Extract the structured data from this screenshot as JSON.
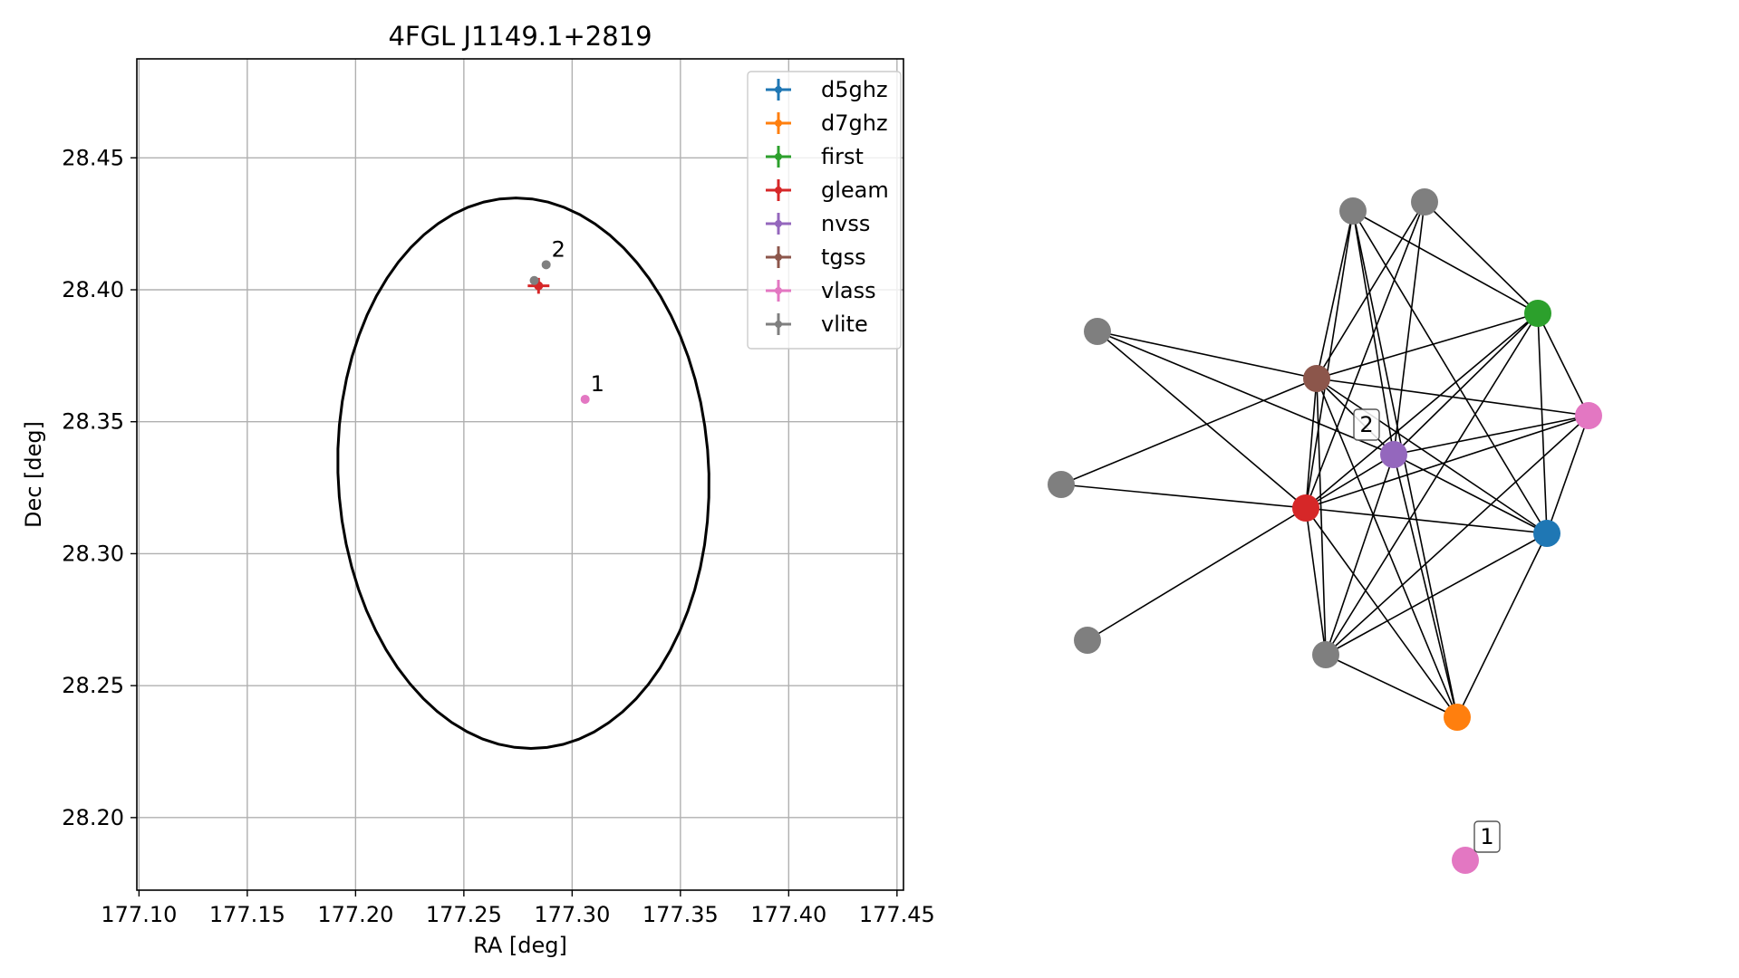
{
  "chart_data": [
    {
      "type": "scatter",
      "title": "4FGL J1149.1+2819",
      "xlabel": "RA [deg]",
      "ylabel": "Dec [deg]",
      "xlim": [
        177.099,
        177.453
      ],
      "ylim": [
        28.1725,
        28.4875
      ],
      "xticks": [
        {
          "value": 177.1,
          "label": "177.10"
        },
        {
          "value": 177.15,
          "label": "177.15"
        },
        {
          "value": 177.2,
          "label": "177.20"
        },
        {
          "value": 177.25,
          "label": "177.25"
        },
        {
          "value": 177.3,
          "label": "177.30"
        },
        {
          "value": 177.35,
          "label": "177.35"
        },
        {
          "value": 177.4,
          "label": "177.40"
        },
        {
          "value": 177.45,
          "label": "177.45"
        }
      ],
      "yticks": [
        {
          "value": 28.2,
          "label": "28.20"
        },
        {
          "value": 28.25,
          "label": "28.25"
        },
        {
          "value": 28.3,
          "label": "28.30"
        },
        {
          "value": 28.35,
          "label": "28.35"
        },
        {
          "value": 28.4,
          "label": "28.40"
        },
        {
          "value": 28.45,
          "label": "28.45"
        }
      ],
      "grid": true,
      "legend_placement": "upper right",
      "series": [
        {
          "name": "d5ghz",
          "color": "#1f77b4",
          "points": []
        },
        {
          "name": "d7ghz",
          "color": "#ff7f0e",
          "points": []
        },
        {
          "name": "first",
          "color": "#2ca02c",
          "points": []
        },
        {
          "name": "gleam",
          "color": "#d62728",
          "points": [
            {
              "ra": 177.2845,
              "dec": 28.4015,
              "ra_err": 0.005,
              "dec_err": 0.003
            }
          ]
        },
        {
          "name": "nvss",
          "color": "#9467bd",
          "points": []
        },
        {
          "name": "tgss",
          "color": "#8c564b",
          "points": []
        },
        {
          "name": "vlass",
          "color": "#e377c2",
          "points": [
            {
              "ra": 177.306,
              "dec": 28.3585,
              "ra_err": 0,
              "dec_err": 0
            }
          ]
        },
        {
          "name": "vlite",
          "color": "#7f7f7f",
          "points": [
            {
              "ra": 177.2825,
              "dec": 28.4035,
              "ra_err": 0,
              "dec_err": 0
            },
            {
              "ra": 177.288,
              "dec": 28.4095,
              "ra_err": 0,
              "dec_err": 0
            }
          ]
        }
      ],
      "ellipse": {
        "center_ra": 177.2775,
        "center_dec": 28.3305,
        "semi_ra": 0.0855,
        "semi_dec": 0.1045,
        "tilt_deg": 6,
        "color": "#000000"
      },
      "annotations": [
        {
          "text": "2",
          "ra": 177.2905,
          "dec": 28.4125
        },
        {
          "text": "1",
          "ra": 177.3085,
          "dec": 28.3615
        }
      ]
    },
    {
      "type": "network",
      "nodes": [
        {
          "id": "vlite_a",
          "color": "#7f7f7f"
        },
        {
          "id": "vlite_b",
          "color": "#7f7f7f"
        },
        {
          "id": "vlite_c",
          "color": "#7f7f7f"
        },
        {
          "id": "vlite_d",
          "color": "#7f7f7f"
        },
        {
          "id": "vlite_e",
          "color": "#7f7f7f"
        },
        {
          "id": "vlite_f",
          "color": "#7f7f7f"
        },
        {
          "id": "first",
          "color": "#2ca02c"
        },
        {
          "id": "tgss",
          "color": "#8c564b"
        },
        {
          "id": "vlass_a",
          "color": "#e377c2"
        },
        {
          "id": "nvss",
          "color": "#9467bd"
        },
        {
          "id": "gleam",
          "color": "#d62728"
        },
        {
          "id": "d5ghz",
          "color": "#1f77b4"
        },
        {
          "id": "d7ghz",
          "color": "#ff7f0e"
        },
        {
          "id": "vlass_b",
          "color": "#e377c2"
        }
      ],
      "edges": [
        [
          "vlite_a",
          "tgss"
        ],
        [
          "vlite_a",
          "gleam"
        ],
        [
          "vlite_a",
          "nvss"
        ],
        [
          "vlite_a",
          "first"
        ],
        [
          "vlite_a",
          "d5ghz"
        ],
        [
          "vlite_a",
          "d7ghz"
        ],
        [
          "vlite_b",
          "tgss"
        ],
        [
          "vlite_b",
          "gleam"
        ],
        [
          "vlite_b",
          "nvss"
        ],
        [
          "vlite_b",
          "first"
        ],
        [
          "vlite_c",
          "tgss"
        ],
        [
          "vlite_c",
          "gleam"
        ],
        [
          "vlite_c",
          "nvss"
        ],
        [
          "vlite_d",
          "tgss"
        ],
        [
          "vlite_d",
          "gleam"
        ],
        [
          "vlite_e",
          "gleam"
        ],
        [
          "tgss",
          "first"
        ],
        [
          "tgss",
          "vlass_a"
        ],
        [
          "tgss",
          "nvss"
        ],
        [
          "tgss",
          "gleam"
        ],
        [
          "tgss",
          "d5ghz"
        ],
        [
          "tgss",
          "d7ghz"
        ],
        [
          "tgss",
          "vlite_f"
        ],
        [
          "gleam",
          "first"
        ],
        [
          "gleam",
          "vlass_a"
        ],
        [
          "gleam",
          "nvss"
        ],
        [
          "gleam",
          "d5ghz"
        ],
        [
          "gleam",
          "d7ghz"
        ],
        [
          "gleam",
          "vlite_f"
        ],
        [
          "nvss",
          "first"
        ],
        [
          "nvss",
          "vlass_a"
        ],
        [
          "nvss",
          "d5ghz"
        ],
        [
          "nvss",
          "vlite_f"
        ],
        [
          "nvss",
          "d7ghz"
        ],
        [
          "first",
          "vlass_a"
        ],
        [
          "first",
          "d5ghz"
        ],
        [
          "first",
          "vlite_f"
        ],
        [
          "vlass_a",
          "d5ghz"
        ],
        [
          "vlass_a",
          "vlite_f"
        ],
        [
          "d5ghz",
          "d7ghz"
        ],
        [
          "d5ghz",
          "vlite_f"
        ],
        [
          "vlite_f",
          "d7ghz"
        ]
      ],
      "labels": [
        {
          "text": "2",
          "node": "nvss"
        },
        {
          "text": "1",
          "node": "vlass_b"
        }
      ]
    }
  ]
}
